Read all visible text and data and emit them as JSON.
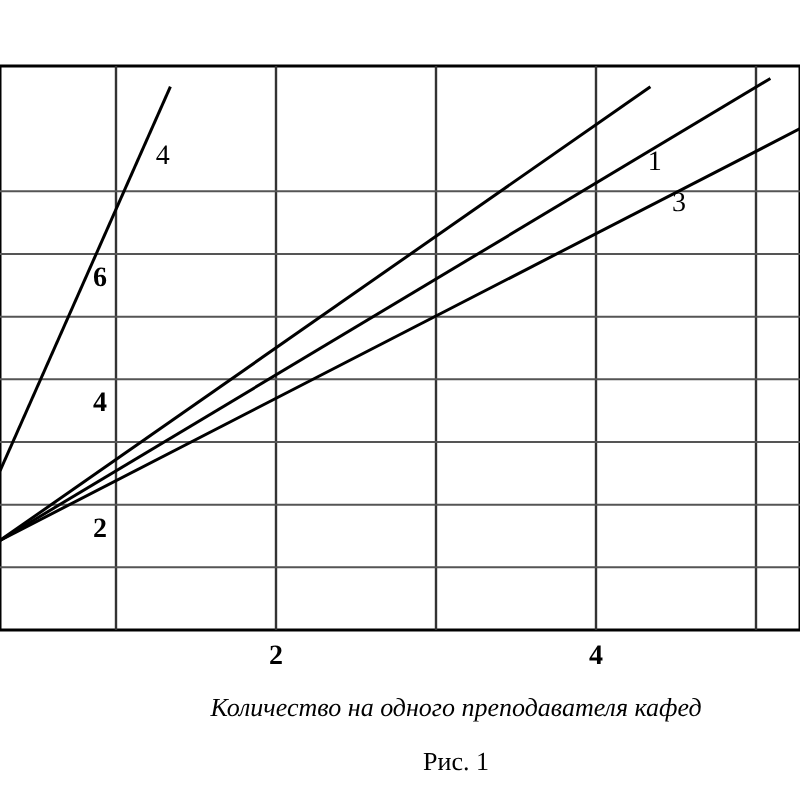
{
  "chart_data": {
    "type": "line",
    "xlabel": "Количество на одного преподавателя кафед",
    "annotations": [
      "Рис. 1"
    ],
    "xlim": [
      0.275,
      5.275
    ],
    "ylim": [
      0,
      9
    ],
    "xticks": [
      {
        "value": 1,
        "label": null
      },
      2,
      {
        "value": 3,
        "label": null
      },
      4,
      {
        "value": 5,
        "label": null
      }
    ],
    "yticks": [
      {
        "value": 1,
        "label": null
      },
      2,
      {
        "value": 3,
        "label": null
      },
      4,
      {
        "value": 5,
        "label": null
      },
      6,
      {
        "value": 7,
        "label": null
      }
    ],
    "grid": true,
    "line_style": "solid",
    "marker": "none",
    "series": [
      {
        "name": "4",
        "color": "#000000",
        "x": [
          0.275,
          1.34
        ],
        "values": [
          2.54,
          8.67
        ]
      },
      {
        "color": "#000000",
        "x": [
          0.275,
          4.34
        ],
        "values": [
          1.43,
          8.67
        ]
      },
      {
        "name": "1",
        "color": "#000000",
        "x": [
          0.275,
          5.09
        ],
        "values": [
          1.43,
          8.8
        ]
      },
      {
        "name": "3",
        "color": "#000000",
        "x": [
          0.275,
          5.275
        ],
        "values": [
          1.43,
          8.0
        ]
      }
    ]
  }
}
